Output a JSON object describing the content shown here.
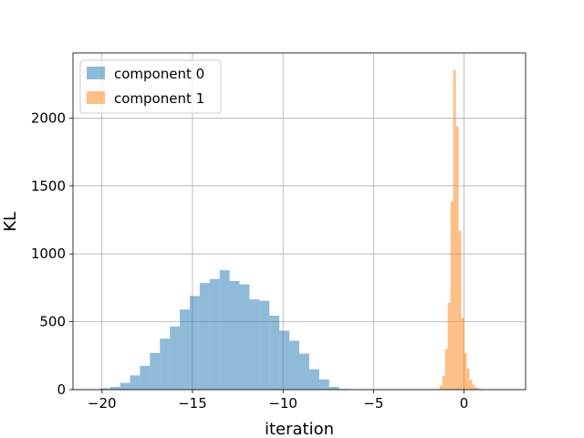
{
  "chart_data": {
    "type": "bar",
    "title": "",
    "xlabel": "iteration",
    "ylabel": "KL",
    "xlim": [
      -21.6,
      3.4
    ],
    "ylim": [
      0,
      2480
    ],
    "xticks": [
      -20,
      -15,
      -10,
      -5,
      0
    ],
    "xtick_labels": [
      "−20",
      "−15",
      "−10",
      "−5",
      "0"
    ],
    "yticks": [
      0,
      500,
      1000,
      1500,
      2000
    ],
    "ytick_labels": [
      "0",
      "500",
      "1000",
      "1500",
      "2000"
    ],
    "grid": true,
    "legend_position": "top-left",
    "series": [
      {
        "name": "component 0",
        "color": "#1f77b4",
        "opacity": 0.5,
        "bin_edges": [
          -20.1,
          -19.55,
          -19.0,
          -18.45,
          -17.9,
          -17.35,
          -16.8,
          -16.25,
          -15.7,
          -15.15,
          -14.6,
          -14.05,
          -13.5,
          -12.95,
          -12.4,
          -11.85,
          -11.3,
          -10.75,
          -10.2,
          -9.65,
          -9.1,
          -8.55,
          -8.0,
          -7.45,
          -6.9,
          -6.35,
          -5.8
        ],
        "counts": [
          10,
          20,
          50,
          105,
          175,
          270,
          375,
          465,
          590,
          690,
          785,
          815,
          880,
          800,
          775,
          665,
          655,
          545,
          435,
          360,
          265,
          150,
          75,
          20,
          5,
          2
        ]
      },
      {
        "name": "component 1",
        "color": "#ff7f0e",
        "opacity": 0.5,
        "bin_edges": [
          -1.5,
          -1.35,
          -1.2,
          -1.05,
          -0.9,
          -0.75,
          -0.6,
          -0.45,
          -0.3,
          -0.15,
          0.0,
          0.15,
          0.3,
          0.45,
          0.6,
          0.75,
          0.9,
          1.05,
          1.2,
          1.35,
          1.5
        ],
        "counts": [
          5,
          30,
          100,
          300,
          640,
          1385,
          2355,
          1940,
          1170,
          530,
          270,
          155,
          75,
          35,
          15,
          10,
          5,
          3,
          2,
          1
        ]
      }
    ]
  }
}
